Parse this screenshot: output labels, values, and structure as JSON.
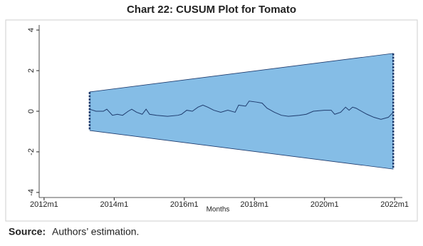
{
  "chart_data": {
    "type": "cusum",
    "title": "Chart 22: CUSUM Plot for Tomato",
    "x_label": "Months",
    "xlim": [
      2011.86,
      2022.22
    ],
    "xticks": [
      {
        "value": 2012,
        "label": "2012m1"
      },
      {
        "value": 2014,
        "label": "2014m1"
      },
      {
        "value": 2016,
        "label": "2016m1"
      },
      {
        "value": 2018,
        "label": "2018m1"
      },
      {
        "value": 2020,
        "label": "2020m1"
      },
      {
        "value": 2022,
        "label": "2022m1"
      }
    ],
    "ylim": [
      -4.25,
      4.25
    ],
    "yticks": [
      -4,
      -2,
      0,
      2,
      4
    ],
    "grid": false,
    "band": {
      "color": "#85bde6",
      "edge_color": "#1f3c6e",
      "x": [
        2013.3,
        2021.96
      ],
      "upper": [
        0.95,
        2.85
      ],
      "lower": [
        -0.95,
        -2.85
      ]
    },
    "line_color": "#1f3c6e",
    "x": [
      2013.3,
      2013.48,
      2013.69,
      2013.79,
      2013.95,
      2014.09,
      2014.24,
      2014.4,
      2014.5,
      2014.64,
      2014.8,
      2014.91,
      2015.01,
      2015.21,
      2015.52,
      2015.82,
      2015.92,
      2016.07,
      2016.23,
      2016.39,
      2016.53,
      2016.67,
      2016.84,
      2017.04,
      2017.24,
      2017.45,
      2017.55,
      2017.75,
      2017.85,
      2018.06,
      2018.22,
      2018.36,
      2018.57,
      2018.77,
      2018.97,
      2019.28,
      2019.48,
      2019.68,
      2019.99,
      2020.19,
      2020.29,
      2020.46,
      2020.6,
      2020.7,
      2020.8,
      2020.9,
      2021.0,
      2021.21,
      2021.41,
      2021.61,
      2021.82,
      2021.96
    ],
    "values": [
      0.1,
      0,
      0,
      0.1,
      -0.2,
      -0.15,
      -0.2,
      0,
      0.1,
      -0.05,
      -0.15,
      0.1,
      -0.15,
      -0.2,
      -0.25,
      -0.2,
      -0.15,
      0.05,
      0,
      0.2,
      0.3,
      0.2,
      0.05,
      -0.05,
      0.05,
      -0.05,
      0.3,
      0.25,
      0.5,
      0.45,
      0.4,
      0.15,
      -0.05,
      -0.2,
      -0.25,
      -0.2,
      -0.15,
      0,
      0.05,
      0.05,
      -0.15,
      -0.05,
      0.2,
      0.05,
      0.2,
      0.15,
      0.05,
      -0.15,
      -0.3,
      -0.4,
      -0.3,
      -0.05
    ]
  },
  "source_label": "Source:",
  "source_text": "Authors’ estimation."
}
